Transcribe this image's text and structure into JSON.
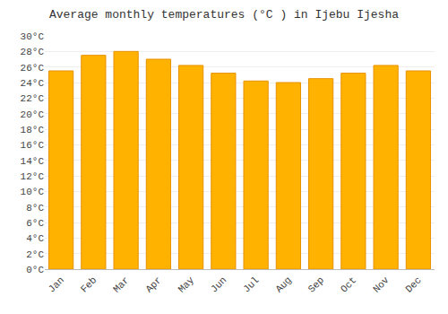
{
  "chart_data": {
    "type": "bar",
    "title": "Average monthly temperatures (°C ) in Ijebu Ijesha",
    "categories": [
      "Jan",
      "Feb",
      "Mar",
      "Apr",
      "May",
      "Jun",
      "Jul",
      "Aug",
      "Sep",
      "Oct",
      "Nov",
      "Dec"
    ],
    "values": [
      25.5,
      27.5,
      28.0,
      27.0,
      26.2,
      25.2,
      24.2,
      24.0,
      24.5,
      25.2,
      26.2,
      25.5
    ],
    "color": "#FFB300",
    "ylim": [
      0,
      30
    ],
    "yticks": [
      {
        "value": 0,
        "label": "0°C"
      },
      {
        "value": 2,
        "label": "2°C"
      },
      {
        "value": 4,
        "label": "4°C"
      },
      {
        "value": 6,
        "label": "6°C"
      },
      {
        "value": 8,
        "label": "8°C"
      },
      {
        "value": 10,
        "label": "10°C"
      },
      {
        "value": 12,
        "label": "12°C"
      },
      {
        "value": 14,
        "label": "14°C"
      },
      {
        "value": 16,
        "label": "16°C"
      },
      {
        "value": 18,
        "label": "18°C"
      },
      {
        "value": 20,
        "label": "20°C"
      },
      {
        "value": 22,
        "label": "22°C"
      },
      {
        "value": 24,
        "label": "24°C"
      },
      {
        "value": 26,
        "label": "26°C"
      },
      {
        "value": 28,
        "label": "28°C"
      },
      {
        "value": 30,
        "label": "30°C"
      }
    ],
    "grid": true
  }
}
